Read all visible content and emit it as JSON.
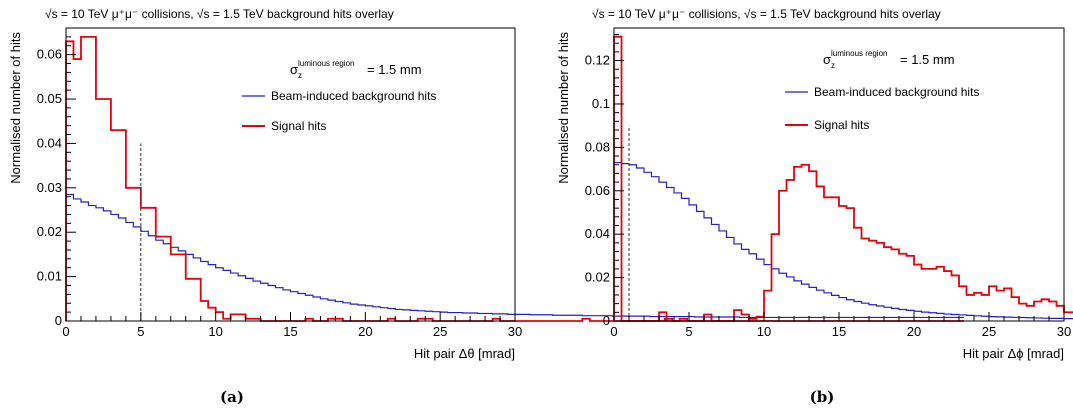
{
  "chart_data": [
    {
      "type": "line",
      "panel_label": "(a)",
      "title": "√s = 10 TeV μ⁺μ⁻ collisions, √s = 1.5 TeV background hits overlay",
      "annotation": "σ_z^luminous region = 1.5 mm",
      "annotation_parts": {
        "symbol": "σ",
        "sub": "z",
        "sup": "luminous region",
        "value": "= 1.5 mm"
      },
      "xlabel": "Hit pair Δθ [mrad]",
      "ylabel": "Normalised number of hits",
      "xlim": [
        0,
        30
      ],
      "ylim": [
        0,
        0.066
      ],
      "xticks": [
        0,
        5,
        10,
        15,
        20,
        25,
        30
      ],
      "xtick_labels": [
        "0",
        "5",
        "10",
        "15",
        "20",
        "25",
        "30"
      ],
      "yticks": [
        0,
        0.01,
        0.02,
        0.03,
        0.04,
        0.05,
        0.06
      ],
      "ytick_labels": [
        "0",
        "0.01",
        "0.02",
        "0.03",
        "0.04",
        "0.05",
        "0.06"
      ],
      "bin_width": 0.5,
      "cut_line": {
        "x": 5,
        "y_top": 0.04
      },
      "legend_position": "top-right",
      "series": [
        {
          "name": "Beam-induced background hits",
          "color": "#2222cc",
          "values": [
            0.0285,
            0.0275,
            0.0268,
            0.026,
            0.0255,
            0.0248,
            0.024,
            0.0232,
            0.0222,
            0.0212,
            0.0202,
            0.0192,
            0.0182,
            0.0174,
            0.0166,
            0.0158,
            0.015,
            0.0142,
            0.0134,
            0.0127,
            0.012,
            0.0114,
            0.0108,
            0.0102,
            0.0096,
            0.009,
            0.0085,
            0.008,
            0.0075,
            0.007,
            0.0066,
            0.0062,
            0.0058,
            0.0054,
            0.005,
            0.0047,
            0.0044,
            0.0041,
            0.0038,
            0.0036,
            0.0034,
            0.0032,
            0.003,
            0.0028,
            0.0026,
            0.0025,
            0.0024,
            0.0023,
            0.0022,
            0.0021,
            0.002,
            0.0019,
            0.0019,
            0.0018,
            0.0018,
            0.0017,
            0.0017,
            0.0016,
            0.0016,
            0.0015,
            0.0015,
            0.0015,
            0.0014,
            0.0014,
            0.0014,
            0.0013,
            0.0013,
            0.0013,
            0.0013,
            0.0012,
            0.0012,
            0.0012,
            0.0012,
            0.0011,
            0.0011,
            0.0011,
            0.0011,
            0.0011,
            0.001,
            0.001,
            0.001,
            0.001,
            0.001,
            0.001,
            0.0009,
            0.0009,
            0.0009,
            0.0009,
            0.0009,
            0.0009,
            0.0008,
            0.0008,
            0.0008,
            0.0008,
            0.0008,
            0.0008,
            0.0008,
            0.0008,
            0.0008,
            0.0008,
            0.0008,
            0.0008,
            0.0008,
            0.0008,
            0.0008,
            0.0008,
            0.0008,
            0.0008,
            0.0008,
            0.0008,
            0.0008,
            0.0008,
            0.0008,
            0.0008,
            0.0008,
            0.0008,
            0.0008,
            0.0008,
            0.0008,
            0.0008
          ]
        },
        {
          "name": "Signal hits",
          "color": "#e8000b",
          "values": [
            0.063,
            0.059,
            0.064,
            0.064,
            0.05,
            0.05,
            0.043,
            0.043,
            0.03,
            0.03,
            0.0255,
            0.0255,
            0.019,
            0.019,
            0.015,
            0.015,
            0.0095,
            0.0095,
            0.0045,
            0.003,
            0.002,
            0.0005,
            0.0015,
            0.0015,
            0.0005,
            0.0005,
            0.0,
            0.0,
            0.0,
            0.0,
            0.0,
            0.0,
            0.0005,
            0.0,
            0.0,
            0.0005,
            0.0005,
            0.0,
            0.0,
            0.0,
            0.0,
            0.0,
            0.0,
            0.0005,
            0.0,
            0.0,
            0.0,
            0.0005,
            0.0005,
            0.0,
            0.0,
            0.0,
            0.0,
            0.0,
            0.0,
            0.0,
            0.0,
            0.0005,
            0.0,
            0.0,
            0.0,
            0.0,
            0.0,
            0.0,
            0.0,
            0.0,
            0.0,
            0.0,
            0.0,
            0.0005,
            0.0,
            0.0,
            0.0,
            0.0,
            0.0,
            0.0,
            0.0,
            0.0,
            0.0,
            0.0,
            0.0005,
            0.0,
            0.0005,
            0.0,
            0.0,
            0.0,
            0.0,
            0.0,
            0.0,
            0.0,
            0.0,
            0.0,
            0.0,
            0.0,
            0.0,
            0.0,
            0.0,
            0.0,
            0.0,
            0.0,
            0.0,
            0.0,
            0.0,
            0.0,
            0.0,
            0.0,
            0.0,
            0.0,
            0.0,
            0.0,
            0.0,
            0.0,
            0.0,
            0.0,
            0.0,
            0.0,
            0.0,
            0.0,
            0.0,
            0.0
          ]
        }
      ]
    },
    {
      "type": "line",
      "panel_label": "(b)",
      "title": "√s = 10 TeV μ⁺μ⁻ collisions, √s = 1.5 TeV background hits overlay",
      "annotation": "σ_z^luminous region = 1.5 mm",
      "annotation_parts": {
        "symbol": "σ",
        "sub": "z",
        "sup": "luminous region",
        "value": "= 1.5 mm"
      },
      "xlabel": "Hit pair Δϕ [mrad]",
      "ylabel": "Normalised number of hits",
      "xlim": [
        0,
        30
      ],
      "ylim": [
        0,
        0.135
      ],
      "xticks": [
        0,
        5,
        10,
        15,
        20,
        25,
        30
      ],
      "xtick_labels": [
        "0",
        "5",
        "10",
        "15",
        "20",
        "25",
        "30"
      ],
      "yticks": [
        0,
        0.02,
        0.04,
        0.06,
        0.08,
        0.1,
        0.12
      ],
      "ytick_labels": [
        "0",
        "0.02",
        "0.04",
        "0.06",
        "0.08",
        "0.1",
        "0.12"
      ],
      "bin_width": 0.5,
      "cut_line": {
        "x": 1,
        "y_top": 0.09
      },
      "legend_position": "top-right",
      "series": [
        {
          "name": "Beam-induced background hits",
          "color": "#2222cc",
          "values": [
            0.073,
            0.0725,
            0.072,
            0.0705,
            0.0685,
            0.0665,
            0.064,
            0.0615,
            0.059,
            0.0565,
            0.0535,
            0.0505,
            0.0475,
            0.0445,
            0.0415,
            0.0385,
            0.0355,
            0.033,
            0.031,
            0.0285,
            0.026,
            0.024,
            0.022,
            0.0203,
            0.0185,
            0.017,
            0.0155,
            0.0142,
            0.013,
            0.0118,
            0.0108,
            0.0098,
            0.009,
            0.0082,
            0.0075,
            0.0069,
            0.0063,
            0.0058,
            0.0053,
            0.0049,
            0.0045,
            0.0041,
            0.0038,
            0.0035,
            0.0032,
            0.003,
            0.0028,
            0.0026,
            0.0024,
            0.0022,
            0.002,
            0.0019,
            0.0018,
            0.0017,
            0.0016,
            0.0015,
            0.0014,
            0.0013,
            0.0012,
            0.0012,
            0.0011,
            0.0011,
            0.001,
            0.001,
            0.0009,
            0.0009,
            0.0009,
            0.0008,
            0.0008,
            0.0008,
            0.0007,
            0.0007,
            0.0007,
            0.0007,
            0.0006,
            0.0006,
            0.0006,
            0.0006,
            0.0006,
            0.0005,
            0.0005,
            0.0005,
            0.0005,
            0.0005,
            0.0005,
            0.0005,
            0.0004,
            0.0004,
            0.0004,
            0.0004,
            0.0004,
            0.0004,
            0.0004,
            0.0004,
            0.0004,
            0.0004,
            0.0004,
            0.0004,
            0.0004,
            0.0004,
            0.0004,
            0.0004,
            0.0004,
            0.0004,
            0.0004,
            0.0004,
            0.0004,
            0.0004,
            0.0004,
            0.0004,
            0.0004,
            0.0004,
            0.0004,
            0.0004,
            0.0004,
            0.0004,
            0.0004,
            0.0004,
            0.0004,
            0.0004
          ]
        },
        {
          "name": "Signal hits",
          "color": "#e8000b",
          "values": [
            0.131,
            0.0,
            0.0,
            0.0,
            0.0,
            0.0,
            0.004,
            0.0,
            0.0,
            0.0,
            0.0,
            0.0,
            0.003,
            0.0,
            0.0,
            0.0,
            0.005,
            0.003,
            0.001,
            0.002,
            0.014,
            0.04,
            0.06,
            0.065,
            0.071,
            0.072,
            0.069,
            0.062,
            0.057,
            0.057,
            0.053,
            0.052,
            0.043,
            0.038,
            0.037,
            0.036,
            0.034,
            0.033,
            0.031,
            0.03,
            0.026,
            0.024,
            0.024,
            0.025,
            0.023,
            0.021,
            0.016,
            0.012,
            0.013,
            0.012,
            0.016,
            0.014,
            0.015,
            0.011,
            0.008,
            0.007,
            0.009,
            0.01,
            0.009,
            0.007,
            0.004,
            0.004,
            0.003,
            0.004,
            0.003,
            0.002,
            0.002,
            0.002,
            0.002,
            0.002,
            0.001,
            0.002,
            0.001,
            0.001,
            0.001,
            0.001,
            0.0005,
            0.0005,
            0.001,
            0.0005,
            0.0005,
            0.0005,
            0.001,
            0.0005,
            0.0005,
            0.0005,
            0.0005,
            0.001,
            0.0005,
            0.0005,
            0.001,
            0.0005,
            0.0005,
            0.0005,
            0.0005,
            0.0005,
            0.0,
            0.0,
            0.0,
            0.0,
            0.0005,
            0.0,
            0.0005,
            0.0,
            0.0005,
            0.0,
            0.0005,
            0.0,
            0.0,
            0.0,
            0.0,
            0.0,
            0.0,
            0.0,
            0.0,
            0.0,
            0.0,
            0.0,
            0.0,
            0.0
          ]
        }
      ]
    }
  ]
}
